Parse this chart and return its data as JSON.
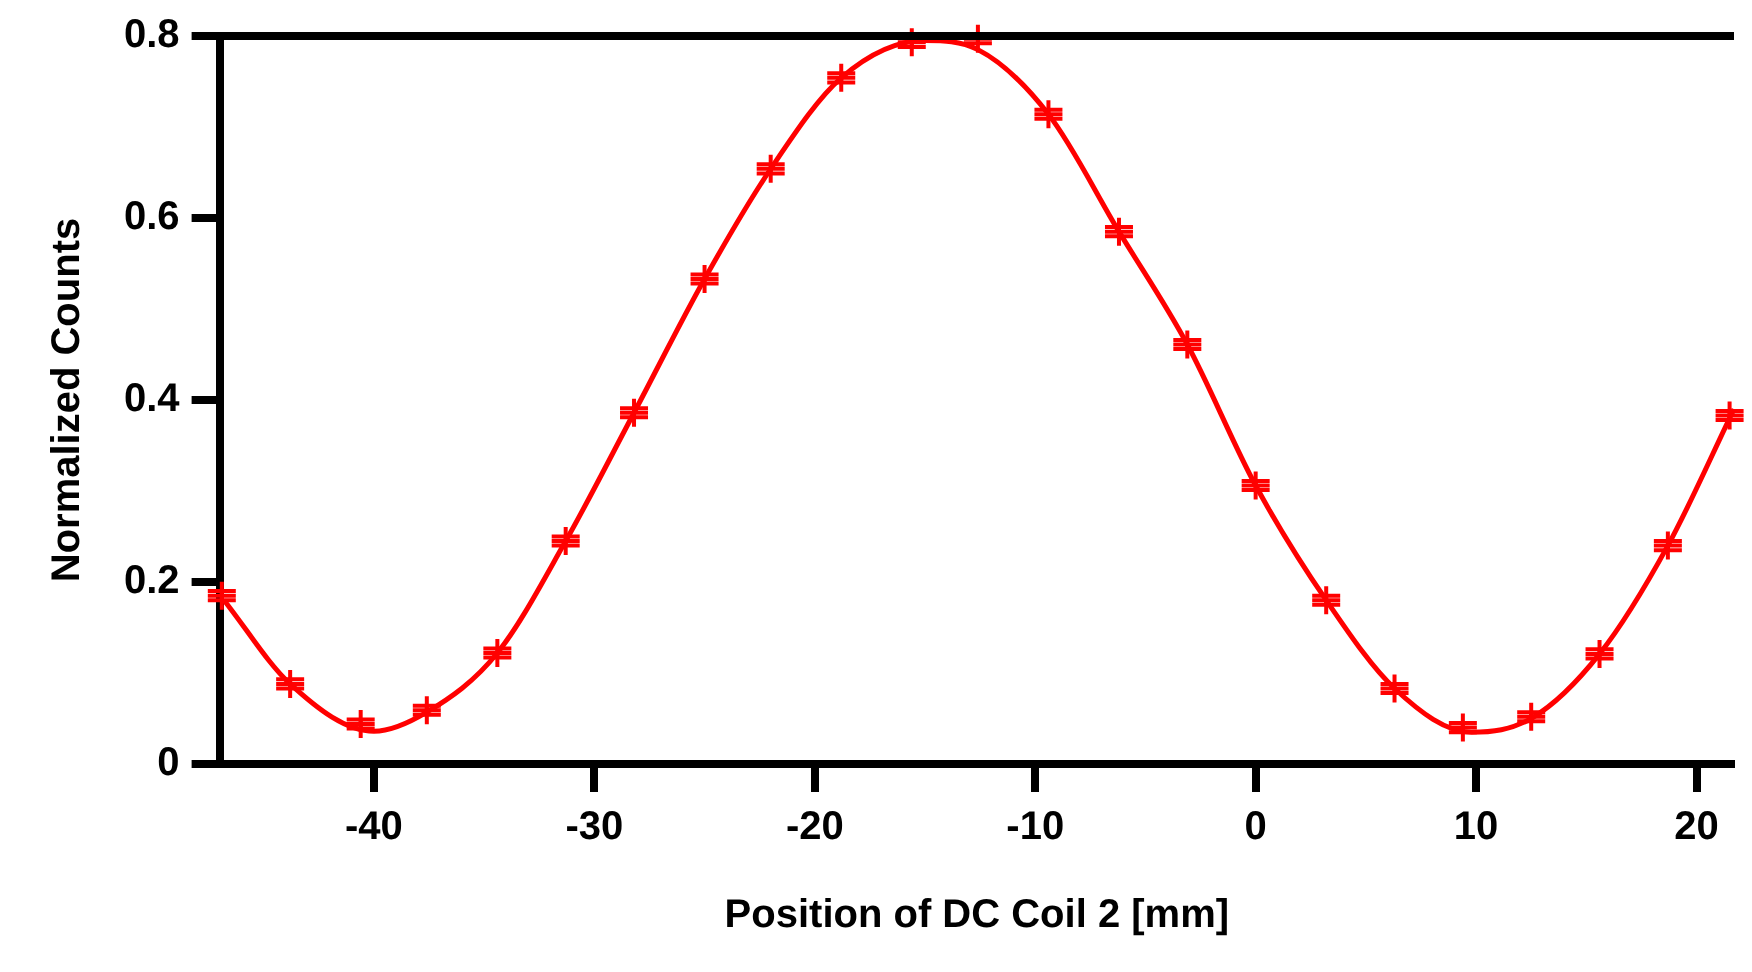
{
  "chart_data": {
    "type": "scatter",
    "xlabel": "Position of DC Coil 2 [mm]",
    "ylabel": "Normalized Counts",
    "xlim": [
      -47,
      21.7
    ],
    "xticks": [
      -40,
      -30,
      -20,
      -10,
      0,
      10,
      20
    ],
    "ylim": [
      0,
      0.8
    ],
    "yticks": [
      0,
      0.2,
      0.4,
      0.6,
      0.8
    ],
    "grid": false,
    "legend": false,
    "marker": "cross",
    "series": [
      {
        "color": "#ff0000",
        "x": [
          -46.9,
          -43.8,
          -40.6,
          -37.6,
          -34.4,
          -31.3,
          -28.2,
          -25.0,
          -22.0,
          -18.8,
          -15.6,
          -12.6,
          -9.4,
          -6.2,
          -3.1,
          0.0,
          3.2,
          6.3,
          9.4,
          12.5,
          15.6,
          18.7,
          21.5
        ],
        "values": [
          0.185,
          0.088,
          0.044,
          0.059,
          0.122,
          0.245,
          0.386,
          0.533,
          0.654,
          0.754,
          0.793,
          0.797,
          0.714,
          0.585,
          0.461,
          0.306,
          0.18,
          0.083,
          0.04,
          0.052,
          0.121,
          0.24,
          0.383
        ],
        "errors": [
          0.005,
          0.005,
          0.005,
          0.005,
          0.005,
          0.005,
          0.005,
          0.005,
          0.005,
          0.005,
          0.005,
          0.005,
          0.005,
          0.005,
          0.005,
          0.005,
          0.005,
          0.005,
          0.005,
          0.005,
          0.005,
          0.005,
          0.005
        ]
      },
      {
        "type": "line",
        "color": "#ff0000",
        "marker": "none",
        "x": [
          -46.8,
          -43.8,
          -40.0,
          -37.6,
          -34.4,
          -31.3,
          -28.2,
          -25.0,
          -22.0,
          -18.8,
          -15.0,
          -12.6,
          -9.4,
          -6.2,
          -3.1,
          0.0,
          3.2,
          6.3,
          9.8,
          12.5,
          15.6,
          18.7,
          21.7
        ],
        "values": [
          0.18,
          0.088,
          0.036,
          0.057,
          0.122,
          0.245,
          0.386,
          0.533,
          0.654,
          0.754,
          0.795,
          0.785,
          0.714,
          0.585,
          0.461,
          0.306,
          0.18,
          0.083,
          0.035,
          0.05,
          0.121,
          0.24,
          0.39
        ]
      }
    ]
  }
}
